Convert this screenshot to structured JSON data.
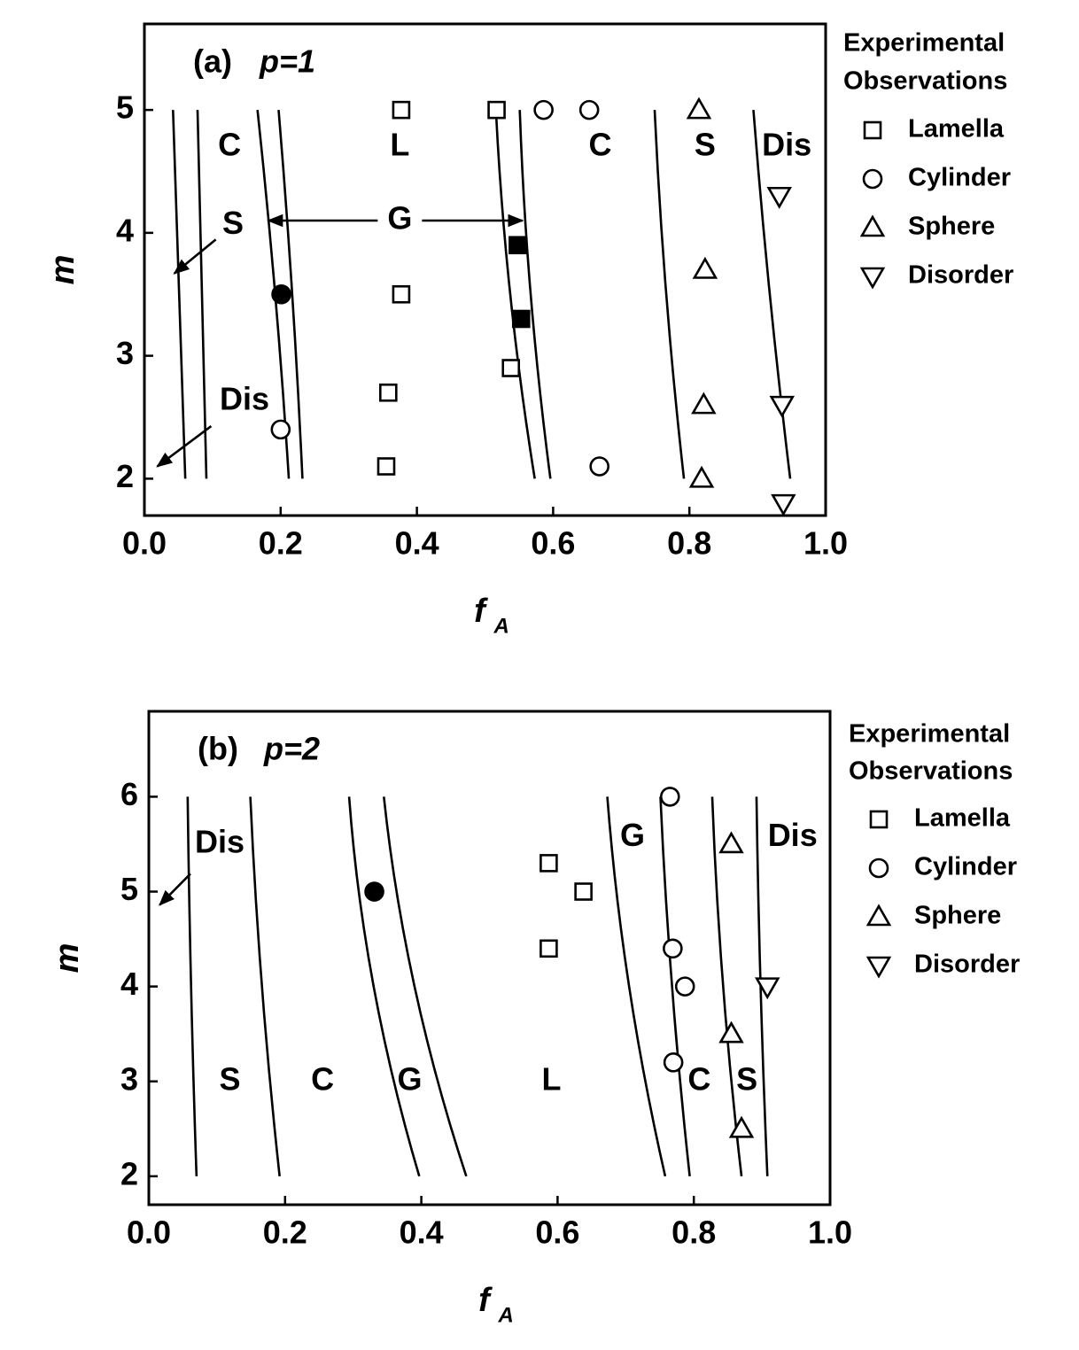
{
  "chart_data": [
    {
      "type": "scatter",
      "panel": "(a)",
      "title": "p=1",
      "xlabel": "f",
      "xlabel_sub": "A",
      "ylabel": "m",
      "xlim": [
        0,
        1
      ],
      "ylim": [
        1.7,
        5.7
      ],
      "xticks": [
        {
          "value": 0,
          "label": "0.0"
        },
        0.2,
        0.4,
        0.6,
        0.8,
        {
          "value": 1,
          "label": "1.0"
        }
      ],
      "yticks": [
        2,
        3,
        4,
        5
      ],
      "legend_title": [
        "Experimental",
        "Observations"
      ],
      "legend": "right outside",
      "series": [
        {
          "name": "Lamella",
          "marker": "square",
          "filled": false,
          "color": "#000000",
          "x": [
            0.377,
            0.377,
            0.358,
            0.355,
            0.517,
            0.538
          ],
          "values": [
            5,
            3.5,
            2.7,
            2.1,
            5,
            2.9
          ]
        },
        {
          "name": "Cylinder",
          "marker": "circle",
          "filled": false,
          "color": "#000000",
          "x": [
            0.586,
            0.653,
            0.2,
            0.668
          ],
          "values": [
            5,
            5,
            2.4,
            2.1
          ]
        },
        {
          "name": "Sphere",
          "marker": "triangle-up",
          "filled": false,
          "color": "#000000",
          "x": [
            0.814,
            0.823,
            0.821,
            0.818
          ],
          "values": [
            5,
            3.7,
            2.6,
            2.0
          ]
        },
        {
          "name": "Disorder",
          "marker": "triangle-down",
          "filled": false,
          "color": "#000000",
          "x": [
            0.932,
            0.936,
            0.938
          ],
          "values": [
            4.3,
            2.6,
            1.8
          ]
        },
        {
          "marker": "circle",
          "filled": true,
          "color": "#000000",
          "x": [
            0.201
          ],
          "values": [
            3.5
          ]
        },
        {
          "marker": "square",
          "filled": true,
          "color": "#000000",
          "x": [
            0.548,
            0.553
          ],
          "values": [
            3.9,
            3.3
          ]
        }
      ],
      "boundaries": [
        {
          "x": [
            0.042,
            0.051,
            0.06
          ],
          "y": [
            5,
            3.5,
            2
          ]
        },
        {
          "x": [
            0.078,
            0.084,
            0.091
          ],
          "y": [
            5,
            3.5,
            2
          ]
        },
        {
          "x": [
            0.166,
            0.192,
            0.212
          ],
          "y": [
            5,
            3.5,
            2
          ]
        },
        {
          "x": [
            0.197,
            0.217,
            0.232
          ],
          "y": [
            5,
            3.5,
            2
          ]
        },
        {
          "x": [
            0.516,
            0.537,
            0.573
          ],
          "y": [
            5,
            3.5,
            2
          ]
        },
        {
          "x": [
            0.551,
            0.567,
            0.596
          ],
          "y": [
            5,
            3.5,
            2
          ]
        },
        {
          "x": [
            0.749,
            0.766,
            0.792
          ],
          "y": [
            5,
            3.5,
            2
          ]
        },
        {
          "x": [
            0.894,
            0.918,
            0.948
          ],
          "y": [
            5,
            3.5,
            2
          ]
        }
      ],
      "annotations": [
        {
          "text": "C",
          "x": 0.125,
          "y": 4.7
        },
        {
          "text": "L",
          "x": 0.375,
          "y": 4.7
        },
        {
          "text": "C",
          "x": 0.669,
          "y": 4.7
        },
        {
          "text": "S",
          "x": 0.823,
          "y": 4.7
        },
        {
          "text": "Dis",
          "x": 0.943,
          "y": 4.7
        },
        {
          "text": "S",
          "x": 0.13,
          "y": 4.06,
          "arrows": [
            [
              0.044,
              3.67
            ]
          ]
        },
        {
          "text": "G",
          "x": 0.375,
          "y": 4.1,
          "arrows": [
            [
              0.182,
              4.1
            ],
            [
              0.555,
              4.1
            ]
          ]
        },
        {
          "text": "Dis",
          "x": 0.147,
          "y": 2.63,
          "arrows": [
            [
              0.019,
              2.1
            ]
          ]
        }
      ]
    },
    {
      "type": "scatter",
      "panel": "(b)",
      "title": "p=2",
      "xlabel": "f",
      "xlabel_sub": "A",
      "ylabel": "m",
      "xlim": [
        0,
        1
      ],
      "ylim": [
        1.7,
        6.9
      ],
      "xticks": [
        {
          "value": 0,
          "label": "0.0"
        },
        0.2,
        0.4,
        0.6,
        0.8,
        {
          "value": 1,
          "label": "1.0"
        }
      ],
      "yticks": [
        2,
        3,
        4,
        5,
        6
      ],
      "legend_title": [
        "Experimental",
        "Observations"
      ],
      "legend": "right outside",
      "series": [
        {
          "name": "Lamella",
          "marker": "square",
          "filled": false,
          "color": "#000000",
          "x": [
            0.587,
            0.638,
            0.587
          ],
          "values": [
            5.3,
            5.0,
            4.4
          ]
        },
        {
          "name": "Cylinder",
          "marker": "circle",
          "filled": false,
          "color": "#000000",
          "x": [
            0.765,
            0.769,
            0.787,
            0.77
          ],
          "values": [
            6.0,
            4.4,
            4.0,
            3.2
          ]
        },
        {
          "name": "Sphere",
          "marker": "triangle-up",
          "filled": false,
          "color": "#000000",
          "x": [
            0.855,
            0.855,
            0.87
          ],
          "values": [
            5.5,
            3.5,
            2.5
          ]
        },
        {
          "name": "Disorder",
          "marker": "triangle-down",
          "filled": false,
          "color": "#000000",
          "x": [
            0.908
          ],
          "values": [
            4.0
          ]
        },
        {
          "marker": "circle",
          "filled": true,
          "color": "#000000",
          "x": [
            0.331
          ],
          "values": [
            5.0
          ]
        }
      ],
      "boundaries": [
        {
          "x": [
            0.057,
            0.062,
            0.07
          ],
          "y": [
            6,
            4,
            2
          ]
        },
        {
          "x": [
            0.149,
            0.166,
            0.192
          ],
          "y": [
            6,
            4,
            2
          ]
        },
        {
          "x": [
            0.294,
            0.33,
            0.397
          ],
          "y": [
            6,
            4,
            2
          ]
        },
        {
          "x": [
            0.345,
            0.39,
            0.466
          ],
          "y": [
            6,
            4,
            2
          ]
        },
        {
          "x": [
            0.673,
            0.705,
            0.758
          ],
          "y": [
            6,
            4,
            2
          ]
        },
        {
          "x": [
            0.751,
            0.768,
            0.794
          ],
          "y": [
            6,
            4,
            2
          ]
        },
        {
          "x": [
            0.827,
            0.843,
            0.87
          ],
          "y": [
            6,
            4,
            2
          ]
        },
        {
          "x": [
            0.892,
            0.898,
            0.908
          ],
          "y": [
            6,
            4,
            2
          ]
        }
      ],
      "annotations": [
        {
          "text": "Dis",
          "x": 0.104,
          "y": 5.5,
          "arrows": [
            [
              0.016,
              4.86
            ]
          ]
        },
        {
          "text": "G",
          "x": 0.71,
          "y": 5.57
        },
        {
          "text": "Dis",
          "x": 0.945,
          "y": 5.57
        },
        {
          "text": "S",
          "x": 0.119,
          "y": 3
        },
        {
          "text": "C",
          "x": 0.255,
          "y": 3
        },
        {
          "text": "G",
          "x": 0.383,
          "y": 3
        },
        {
          "text": "L",
          "x": 0.591,
          "y": 3
        },
        {
          "text": "C",
          "x": 0.808,
          "y": 3
        },
        {
          "text": "S",
          "x": 0.878,
          "y": 3
        }
      ]
    }
  ]
}
